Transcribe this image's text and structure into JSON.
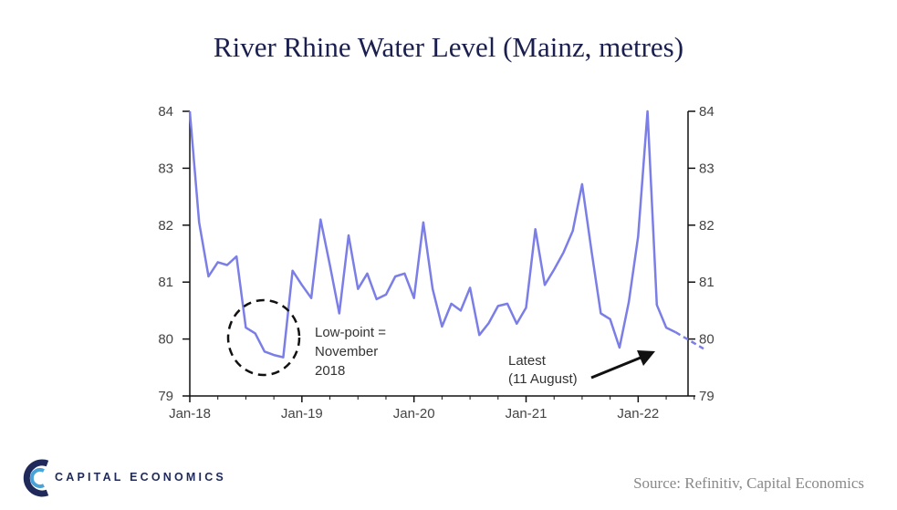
{
  "chart_data": {
    "type": "line",
    "title": "River Rhine Water Level (Mainz, metres)",
    "ylim": [
      79,
      84
    ],
    "y_ticks": [
      79,
      80,
      81,
      82,
      83,
      84
    ],
    "x_tick_labels": [
      "Jan-18",
      "Jan-19",
      "Jan-20",
      "Jan-21",
      "Jan-22"
    ],
    "x_tick_months": [
      0,
      12,
      24,
      36,
      48
    ],
    "xlim_months": [
      0,
      55
    ],
    "series": [
      {
        "color": "#7b7ee6",
        "points": [
          [
            0,
            84.0
          ],
          [
            1,
            82.05
          ],
          [
            2,
            81.1
          ],
          [
            3,
            81.35
          ],
          [
            4,
            81.3
          ],
          [
            5,
            81.45
          ],
          [
            6,
            80.2
          ],
          [
            7,
            80.1
          ],
          [
            8,
            79.78
          ],
          [
            9,
            79.72
          ],
          [
            10,
            79.68
          ],
          [
            11,
            81.2
          ],
          [
            12,
            80.95
          ],
          [
            13,
            80.72
          ],
          [
            14,
            82.1
          ],
          [
            15,
            81.3
          ],
          [
            16,
            80.45
          ],
          [
            17,
            81.82
          ],
          [
            18,
            80.88
          ],
          [
            19,
            81.15
          ],
          [
            20,
            80.7
          ],
          [
            21,
            80.78
          ],
          [
            22,
            81.1
          ],
          [
            23,
            81.15
          ],
          [
            24,
            80.72
          ],
          [
            25,
            82.05
          ],
          [
            26,
            80.88
          ],
          [
            27,
            80.22
          ],
          [
            28,
            80.62
          ],
          [
            29,
            80.5
          ],
          [
            30,
            80.9
          ],
          [
            31,
            80.07
          ],
          [
            32,
            80.28
          ],
          [
            33,
            80.58
          ],
          [
            34,
            80.62
          ],
          [
            35,
            80.27
          ],
          [
            36,
            80.55
          ],
          [
            37,
            81.93
          ],
          [
            38,
            80.95
          ],
          [
            39,
            81.22
          ],
          [
            40,
            81.52
          ],
          [
            41,
            81.9
          ],
          [
            42,
            82.72
          ],
          [
            43,
            81.55
          ],
          [
            44,
            80.45
          ],
          [
            45,
            80.35
          ],
          [
            46,
            79.85
          ],
          [
            47,
            80.65
          ],
          [
            48,
            81.8
          ],
          [
            49,
            84.0
          ],
          [
            50,
            80.6
          ],
          [
            51,
            80.2
          ],
          [
            52,
            80.12
          ]
        ],
        "dashed_points": [
          [
            52,
            80.12
          ],
          [
            55,
            79.83
          ]
        ]
      }
    ],
    "annotations": [
      {
        "text_lines": [
          "Low-point =",
          "November",
          "2018"
        ]
      },
      {
        "text_lines": [
          "Latest",
          "(11 August)"
        ]
      }
    ]
  },
  "footer": {
    "logo_text": "CAPITAL ECONOMICS",
    "source": "Source: Refinitiv, Capital Economics"
  }
}
